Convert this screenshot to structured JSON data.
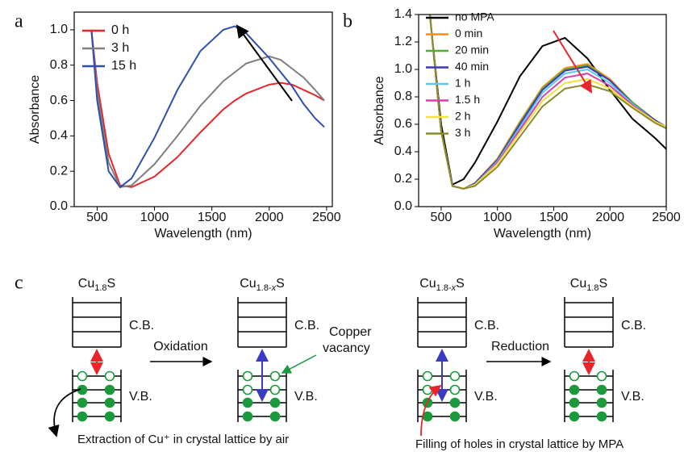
{
  "chart_data": [
    {
      "type": "line",
      "panel_label": "a",
      "x_label": "Wavelength (nm)",
      "y_label": "Absorbance",
      "xlim": [
        300,
        2550
      ],
      "ylim": [
        0,
        1.1
      ],
      "xticks": [
        500,
        1000,
        1500,
        2000,
        2500
      ],
      "yticks": [
        {
          "value": 0,
          "label": "0.0"
        },
        0.2,
        0.4,
        0.6,
        0.8,
        {
          "value": 1,
          "label": "1.0"
        }
      ],
      "legend": "upper left",
      "x": [
        450,
        500,
        600,
        700,
        800,
        1000,
        1200,
        1400,
        1600,
        1700,
        1800,
        2000,
        2100,
        2200,
        2300,
        2400,
        2480
      ],
      "series": [
        {
          "name": "0 h",
          "color": "#e8262a",
          "values": [
            1.0,
            0.7,
            0.3,
            0.12,
            0.11,
            0.17,
            0.28,
            0.42,
            0.55,
            0.6,
            0.64,
            0.69,
            0.7,
            0.69,
            0.66,
            0.63,
            0.6
          ]
        },
        {
          "name": "3 h",
          "color": "#7f7f7f",
          "values": [
            1.0,
            0.65,
            0.25,
            0.11,
            0.12,
            0.24,
            0.4,
            0.57,
            0.71,
            0.76,
            0.81,
            0.85,
            0.83,
            0.78,
            0.73,
            0.66,
            0.6
          ]
        },
        {
          "name": "15 h",
          "color": "#2f4fb0",
          "values": [
            1.0,
            0.6,
            0.2,
            0.11,
            0.16,
            0.39,
            0.66,
            0.88,
            1.0,
            1.02,
            0.98,
            0.84,
            0.76,
            0.68,
            0.58,
            0.5,
            0.45
          ]
        }
      ]
    },
    {
      "type": "line",
      "panel_label": "b",
      "x_label": "Wavelength (nm)",
      "y_label": "Absorbance",
      "xlim": [
        300,
        2500
      ],
      "ylim": [
        0,
        1.4
      ],
      "xticks": [
        500,
        1000,
        1500,
        2000,
        2500
      ],
      "yticks": [
        {
          "value": 0,
          "label": "0.0"
        },
        0.2,
        0.4,
        0.6,
        0.8,
        {
          "value": 1,
          "label": "1.0"
        },
        1.2,
        1.4
      ],
      "legend": "upper left",
      "x": [
        400,
        500,
        600,
        700,
        800,
        1000,
        1200,
        1400,
        1600,
        1800,
        2000,
        2200,
        2400,
        2500
      ],
      "series": [
        {
          "name": "no MPA",
          "color": "#000000",
          "values": [
            1.4,
            0.6,
            0.16,
            0.2,
            0.32,
            0.62,
            0.95,
            1.17,
            1.23,
            1.08,
            0.85,
            0.64,
            0.5,
            0.42
          ]
        },
        {
          "name": "0 min",
          "color": "#ff8c1a",
          "values": [
            1.4,
            0.55,
            0.15,
            0.13,
            0.17,
            0.35,
            0.62,
            0.87,
            1.01,
            1.04,
            0.93,
            0.76,
            0.63,
            0.58
          ]
        },
        {
          "name": "20 min",
          "color": "#4caf2a",
          "values": [
            1.4,
            0.55,
            0.15,
            0.13,
            0.17,
            0.34,
            0.61,
            0.86,
            1.0,
            1.03,
            0.92,
            0.76,
            0.63,
            0.58
          ]
        },
        {
          "name": "40 min",
          "color": "#3b3bbf",
          "values": [
            1.4,
            0.55,
            0.15,
            0.13,
            0.17,
            0.34,
            0.6,
            0.85,
            0.99,
            1.02,
            0.92,
            0.75,
            0.63,
            0.58
          ]
        },
        {
          "name": "1 h",
          "color": "#5bc8e8",
          "values": [
            1.4,
            0.55,
            0.15,
            0.13,
            0.16,
            0.33,
            0.58,
            0.83,
            0.97,
            1.0,
            0.9,
            0.75,
            0.62,
            0.58
          ]
        },
        {
          "name": "1.5 h",
          "color": "#d83fb0",
          "values": [
            1.4,
            0.55,
            0.15,
            0.13,
            0.16,
            0.32,
            0.56,
            0.8,
            0.94,
            0.97,
            0.88,
            0.74,
            0.62,
            0.58
          ]
        },
        {
          "name": "2 h",
          "color": "#f5e13a",
          "values": [
            1.4,
            0.55,
            0.15,
            0.13,
            0.16,
            0.31,
            0.54,
            0.77,
            0.9,
            0.93,
            0.86,
            0.73,
            0.62,
            0.58
          ]
        },
        {
          "name": "3 h",
          "color": "#8a8a2a",
          "values": [
            1.4,
            0.55,
            0.15,
            0.13,
            0.15,
            0.29,
            0.51,
            0.73,
            0.86,
            0.89,
            0.84,
            0.72,
            0.61,
            0.57
          ]
        }
      ]
    }
  ],
  "diagram": {
    "panel_label": "c",
    "states": [
      {
        "formula": [
          "Cu",
          "1.8",
          "",
          "S"
        ],
        "cb": "C.B.",
        "vb": "V.B."
      },
      {
        "formula": [
          "Cu",
          "1.8-",
          "x",
          "S"
        ],
        "cb": "C.B.",
        "vb": "V.B."
      },
      {
        "formula": [
          "Cu",
          "1.8-",
          "x",
          "S"
        ],
        "cb": "C.B.",
        "vb": "V.B."
      },
      {
        "formula": [
          "Cu",
          "1.8",
          "",
          "S"
        ],
        "cb": "C.B.",
        "vb": "V.B."
      }
    ],
    "oxidation": "Oxidation",
    "reduction": "Reduction",
    "vacancy": [
      "Copper",
      "vacancy"
    ],
    "caption_left": "Extraction of Cu⁺ in crystal lattice by air",
    "caption_right": "Filling of holes in crystal lattice by MPA"
  }
}
